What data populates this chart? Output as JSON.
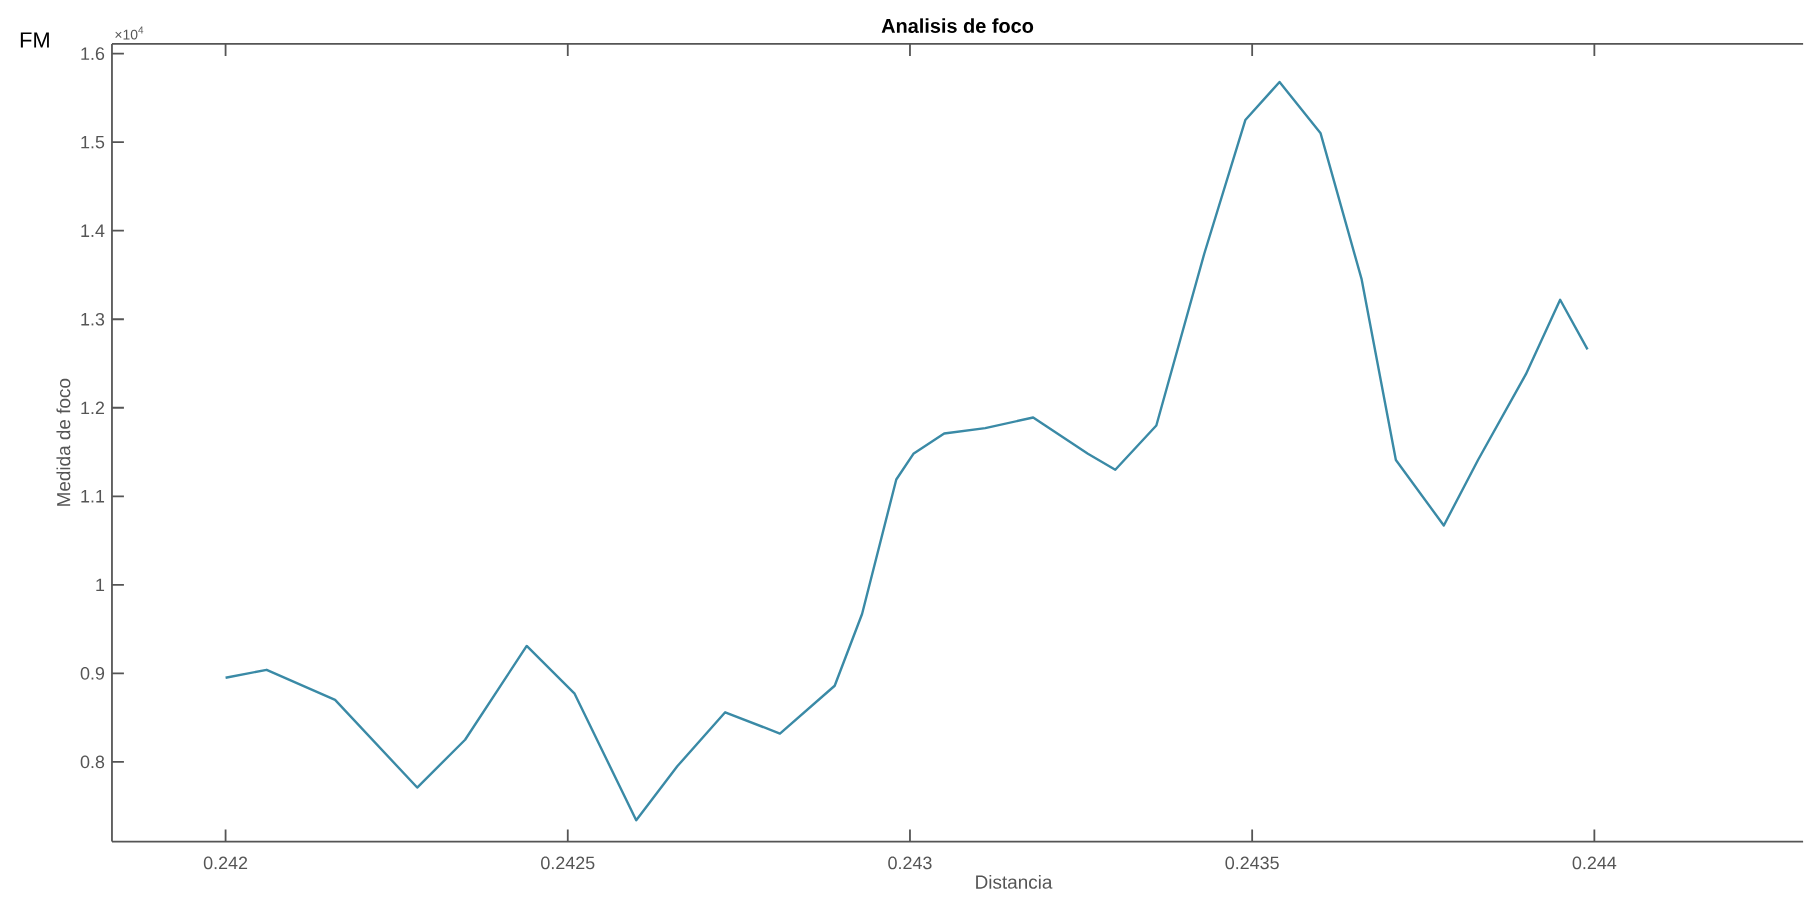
{
  "chart_data": {
    "type": "line",
    "title": "Analisis de foco",
    "xlabel": "Distancia",
    "ylabel": "Medida de foco",
    "annotations": [
      "FM",
      "×10$^{4}$"
    ],
    "x": [
      0.242,
      0.24206,
      0.24216,
      0.24228,
      0.24235,
      0.24244,
      0.24251,
      0.2426,
      0.24266,
      0.24273,
      0.24281,
      0.24289,
      0.24293,
      0.24298,
      0.243005,
      0.24305,
      0.24311,
      0.24318,
      0.24326,
      0.2433,
      0.24336,
      0.24343,
      0.24349,
      0.24354,
      0.2436,
      0.24366,
      0.24371,
      0.24378,
      0.24383,
      0.2439,
      0.24395,
      0.24399
    ],
    "series": [
      {
        "color": "#3a8aa6",
        "values": [
          0.895,
          0.904,
          0.87,
          0.771,
          0.825,
          0.931,
          0.877,
          0.734,
          0.795,
          0.856,
          0.832,
          0.886,
          0.967,
          1.119,
          1.148,
          1.171,
          1.177,
          1.189,
          1.148,
          1.13,
          1.18,
          1.374,
          1.525,
          1.568,
          1.51,
          1.345,
          1.141,
          1.067,
          1.141,
          1.238,
          1.322,
          1.266
        ]
      }
    ],
    "xlim": [
      0.241834,
      0.244305
    ],
    "ylim": [
      0.71,
      1.611
    ],
    "xticks": [
      0.242,
      0.2425,
      0.243,
      0.2435,
      0.244
    ],
    "yticks": [
      0.8,
      0.9,
      1,
      1.1,
      1.2,
      1.3,
      1.4,
      1.5,
      1.6
    ],
    "grid": false,
    "marker": "none",
    "line_style": "solid"
  }
}
